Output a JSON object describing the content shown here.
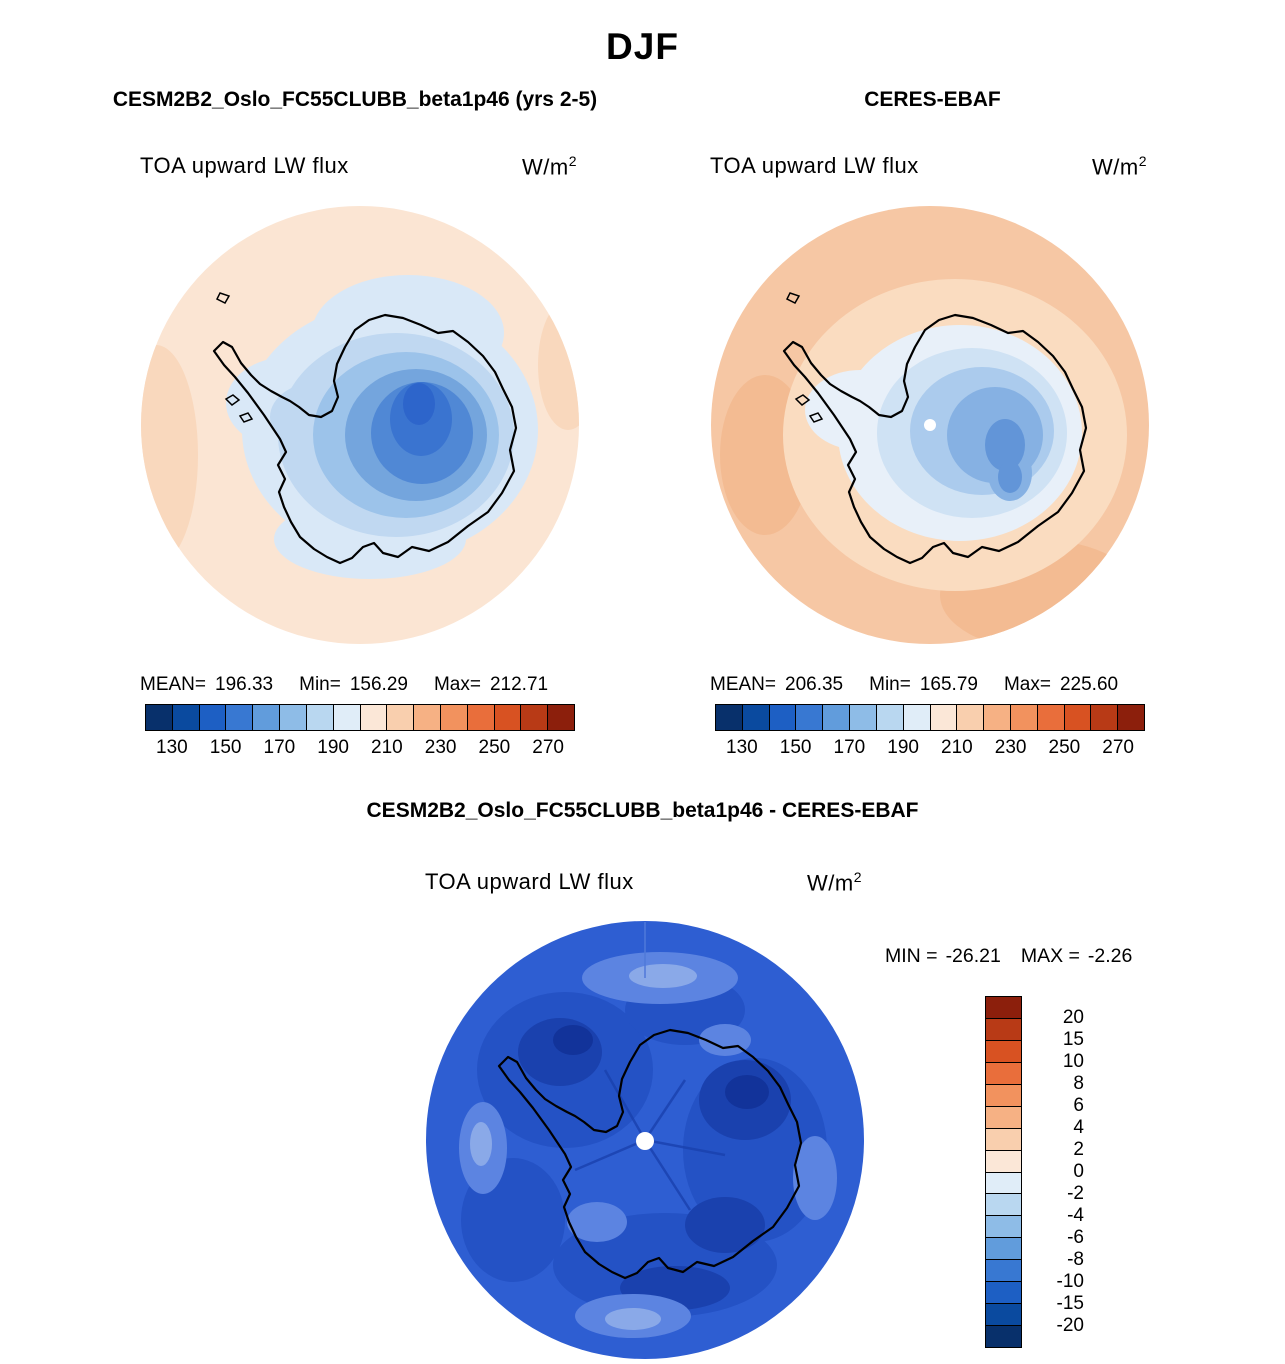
{
  "title": "DJF",
  "panels": [
    {
      "title": "CESM2B2_Oslo_FC55CLUBB_beta1p46 (yrs 2-5)",
      "field_label": "TOA upward LW flux",
      "units_base": "W/m",
      "units_exp": "2",
      "stats": [
        {
          "label": "MEAN=",
          "value": "196.33"
        },
        {
          "label": "Min=",
          "value": "156.29"
        },
        {
          "label": "Max=",
          "value": "212.71"
        }
      ],
      "colorbar": {
        "ticks": [
          "130",
          "150",
          "170",
          "190",
          "210",
          "230",
          "250",
          "270"
        ]
      }
    },
    {
      "title": "CERES-EBAF",
      "field_label": "TOA upward LW flux",
      "units_base": "W/m",
      "units_exp": "2",
      "stats": [
        {
          "label": "MEAN=",
          "value": "206.35"
        },
        {
          "label": "Min=",
          "value": "165.79"
        },
        {
          "label": "Max=",
          "value": "225.60"
        }
      ],
      "colorbar": {
        "ticks": [
          "130",
          "150",
          "170",
          "190",
          "210",
          "230",
          "250",
          "270"
        ]
      }
    }
  ],
  "diff": {
    "title": "CESM2B2_Oslo_FC55CLUBB_beta1p46 - CERES-EBAF",
    "field_label": "TOA upward LW flux",
    "units_base": "W/m",
    "units_exp": "2",
    "min_label": "MIN =",
    "min_value": "-26.21",
    "max_label": "MAX =",
    "max_value": "-2.26",
    "colorbar": {
      "ticks": [
        "20",
        "15",
        "10",
        "8",
        "6",
        "4",
        "2",
        "0",
        "-2",
        "-4",
        "-6",
        "-8",
        "-10",
        "-15",
        "-20"
      ]
    }
  },
  "colors": {
    "flux_colorbar": [
      "#08306b",
      "#0a4a9f",
      "#1d5fc4",
      "#3878d2",
      "#619cdc",
      "#8ebce7",
      "#b9d7f0",
      "#e0edf8",
      "#fbe7d7",
      "#f9cfae",
      "#f6b184",
      "#f2925e",
      "#e96e3b",
      "#d85222",
      "#b83a16",
      "#8c1f0c"
    ],
    "diff_colorbar": [
      "#8c1f0c",
      "#b83a16",
      "#d85222",
      "#e96e3b",
      "#f2925e",
      "#f6b184",
      "#f9cfae",
      "#fbe7d7",
      "#e0edf8",
      "#b9d7f0",
      "#8ebce7",
      "#619cdc",
      "#3878d2",
      "#1d5fc4",
      "#0a4a9f",
      "#08306b"
    ],
    "model_ocean": "#fbe5d3",
    "obs_ocean": "#f6c7a4",
    "diff_base": "#2e5ed2"
  },
  "chart_data": [
    {
      "type": "heatmap",
      "title": "TOA upward LW flux",
      "subtitle": "CESM2B2_Oslo_FC55CLUBB_beta1p46 (yrs 2-5)",
      "season": "DJF",
      "units": "W/m^2",
      "projection": "south polar stereographic map",
      "mean": 196.33,
      "min": 156.29,
      "max": 212.71,
      "colorbar_tick_values": [
        130,
        150,
        170,
        190,
        210,
        230,
        250,
        270
      ],
      "contour_interval": 10,
      "value_range": [
        120,
        280
      ],
      "legend_position": "bottom"
    },
    {
      "type": "heatmap",
      "title": "TOA upward LW flux",
      "subtitle": "CERES-EBAF",
      "season": "DJF",
      "units": "W/m^2",
      "projection": "south polar stereographic map",
      "mean": 206.35,
      "min": 165.79,
      "max": 225.6,
      "colorbar_tick_values": [
        130,
        150,
        170,
        190,
        210,
        230,
        250,
        270
      ],
      "contour_interval": 10,
      "value_range": [
        120,
        280
      ],
      "legend_position": "bottom"
    },
    {
      "type": "heatmap",
      "title": "TOA upward LW flux",
      "subtitle": "CESM2B2_Oslo_FC55CLUBB_beta1p46 - CERES-EBAF",
      "season": "DJF",
      "units": "W/m^2",
      "projection": "south polar stereographic map",
      "min": -26.21,
      "max": -2.26,
      "colorbar_tick_values": [
        20,
        15,
        10,
        8,
        6,
        4,
        2,
        0,
        -2,
        -4,
        -6,
        -8,
        -10,
        -15,
        -20
      ],
      "legend_position": "right"
    }
  ]
}
